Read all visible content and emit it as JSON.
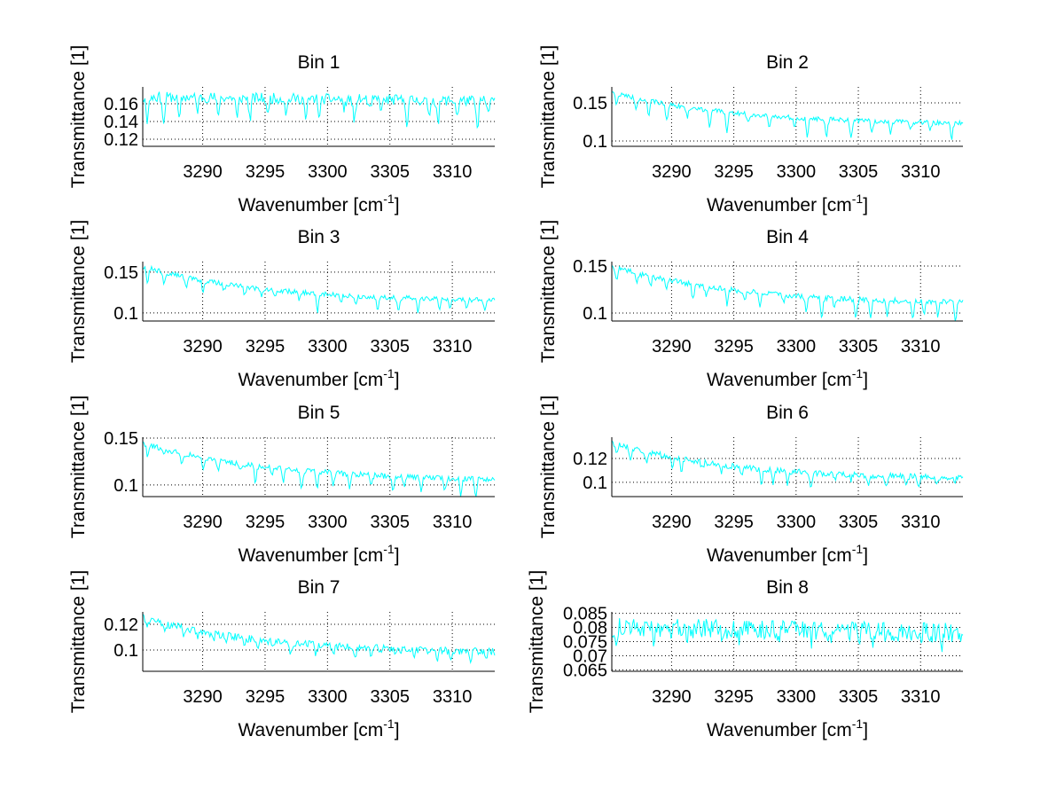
{
  "figure": {
    "background": "#ffffff",
    "line_color": "#00ffff",
    "grid": true,
    "grid_style": "dotted"
  },
  "chart_data": [
    {
      "type": "line",
      "title": "Bin 1",
      "xlabel": "Wavenumber [cm^-1]",
      "xlabel_main": "Wavenumber [cm",
      "xlabel_sup": "-1",
      "xlabel_end": "]",
      "ylabel": "Transmittance [1]",
      "xlim": [
        3285.2,
        3313.4
      ],
      "ylim": [
        0.112,
        0.179
      ],
      "xticks": [
        3290,
        3295,
        3300,
        3305,
        3310
      ],
      "yticks": [
        0.12,
        0.14,
        0.16
      ],
      "ytick_labels": [
        "0.12",
        "0.14",
        "0.16"
      ],
      "series": [
        {
          "name": "Bin 1",
          "baseline_start": 0.168,
          "baseline_end": 0.163,
          "decay": 0.0,
          "dip_depth": 0.032,
          "noise": 0.006,
          "seed": 11
        }
      ]
    },
    {
      "type": "line",
      "title": "Bin 2",
      "xlabel": "Wavenumber [cm^-1]",
      "xlabel_main": "Wavenumber [cm",
      "xlabel_sup": "-1",
      "xlabel_end": "]",
      "ylabel": "Transmittance [1]",
      "xlim": [
        3285.2,
        3313.4
      ],
      "ylim": [
        0.093,
        0.171
      ],
      "xticks": [
        3290,
        3295,
        3300,
        3305,
        3310
      ],
      "yticks": [
        0.1,
        0.15
      ],
      "ytick_labels": [
        "0.1",
        "0.15"
      ],
      "series": [
        {
          "name": "Bin 2",
          "baseline_start": 0.164,
          "baseline_end": 0.121,
          "decay": 0.35,
          "dip_depth": 0.024,
          "noise": 0.003,
          "seed": 22
        }
      ]
    },
    {
      "type": "line",
      "title": "Bin 3",
      "xlabel": "Wavenumber [cm^-1]",
      "xlabel_main": "Wavenumber [cm",
      "xlabel_sup": "-1",
      "xlabel_end": "]",
      "ylabel": "Transmittance [1]",
      "xlim": [
        3285.2,
        3313.4
      ],
      "ylim": [
        0.09,
        0.163
      ],
      "xticks": [
        3290,
        3295,
        3300,
        3305,
        3310
      ],
      "yticks": [
        0.1,
        0.15
      ],
      "ytick_labels": [
        "0.1",
        "0.15"
      ],
      "series": [
        {
          "name": "Bin 3",
          "baseline_start": 0.157,
          "baseline_end": 0.113,
          "decay": 0.35,
          "dip_depth": 0.022,
          "noise": 0.003,
          "seed": 33
        }
      ]
    },
    {
      "type": "line",
      "title": "Bin 4",
      "xlabel": "Wavenumber [cm^-1]",
      "xlabel_main": "Wavenumber [cm",
      "xlabel_sup": "-1",
      "xlabel_end": "]",
      "ylabel": "Transmittance [1]",
      "xlim": [
        3285.2,
        3313.4
      ],
      "ylim": [
        0.0915,
        0.1547
      ],
      "xticks": [
        3290,
        3295,
        3300,
        3305,
        3310
      ],
      "yticks": [
        0.1,
        0.15
      ],
      "ytick_labels": [
        "0.1",
        "0.15"
      ],
      "series": [
        {
          "name": "Bin 4",
          "baseline_start": 0.15,
          "baseline_end": 0.109,
          "decay": 0.35,
          "dip_depth": 0.02,
          "noise": 0.003,
          "seed": 44
        }
      ]
    },
    {
      "type": "line",
      "title": "Bin 5",
      "xlabel": "Wavenumber [cm^-1]",
      "xlabel_main": "Wavenumber [cm",
      "xlabel_sup": "-1",
      "xlabel_end": "]",
      "ylabel": "Transmittance [1]",
      "xlim": [
        3285.2,
        3313.4
      ],
      "ylim": [
        0.0876,
        0.151
      ],
      "xticks": [
        3290,
        3295,
        3300,
        3305,
        3310
      ],
      "yticks": [
        0.1,
        0.15
      ],
      "ytick_labels": [
        "0.1",
        "0.15"
      ],
      "series": [
        {
          "name": "Bin 5",
          "baseline_start": 0.145,
          "baseline_end": 0.104,
          "decay": 0.35,
          "dip_depth": 0.018,
          "noise": 0.003,
          "seed": 55
        }
      ]
    },
    {
      "type": "line",
      "title": "Bin 6",
      "xlabel": "Wavenumber [cm^-1]",
      "xlabel_main": "Wavenumber [cm",
      "xlabel_sup": "-1",
      "xlabel_end": "]",
      "ylabel": "Transmittance [1]",
      "xlim": [
        3285.2,
        3313.4
      ],
      "ylim": [
        0.088,
        0.1378
      ],
      "xticks": [
        3290,
        3295,
        3300,
        3305,
        3310
      ],
      "yticks": [
        0.1,
        0.12
      ],
      "ytick_labels": [
        "0.1",
        "0.12"
      ],
      "series": [
        {
          "name": "Bin 6",
          "baseline_start": 0.133,
          "baseline_end": 0.102,
          "decay": 0.35,
          "dip_depth": 0.012,
          "noise": 0.0025,
          "seed": 66
        }
      ]
    },
    {
      "type": "line",
      "title": "Bin 7",
      "xlabel": "Wavenumber [cm^-1]",
      "xlabel_main": "Wavenumber [cm",
      "xlabel_sup": "-1",
      "xlabel_end": "]",
      "ylabel": "Transmittance [1]",
      "xlim": [
        3285.2,
        3313.4
      ],
      "ylim": [
        0.0834,
        0.1297
      ],
      "xticks": [
        3290,
        3295,
        3300,
        3305,
        3310
      ],
      "yticks": [
        0.1,
        0.12
      ],
      "ytick_labels": [
        "0.1",
        "0.12"
      ],
      "series": [
        {
          "name": "Bin 7",
          "baseline_start": 0.125,
          "baseline_end": 0.097,
          "decay": 0.35,
          "dip_depth": 0.008,
          "noise": 0.003,
          "seed": 77
        }
      ]
    },
    {
      "type": "line",
      "title": "Bin 8",
      "xlabel": "Wavenumber [cm^-1]",
      "xlabel_main": "Wavenumber [cm",
      "xlabel_sup": "-1",
      "xlabel_end": "]",
      "ylabel": "Transmittance [1]",
      "xlim": [
        3285.2,
        3313.4
      ],
      "ylim": [
        0.0645,
        0.0855
      ],
      "xticks": [
        3290,
        3295,
        3300,
        3305,
        3310
      ],
      "yticks": [
        0.065,
        0.07,
        0.075,
        0.08,
        0.085
      ],
      "ytick_labels": [
        "0.065",
        "0.07",
        "0.075",
        "0.08",
        "0.085"
      ],
      "series": [
        {
          "name": "Bin 8",
          "baseline_start": 0.08,
          "baseline_end": 0.078,
          "decay": 0.0,
          "dip_depth": 0.004,
          "noise": 0.0035,
          "seed": 88
        }
      ]
    }
  ]
}
